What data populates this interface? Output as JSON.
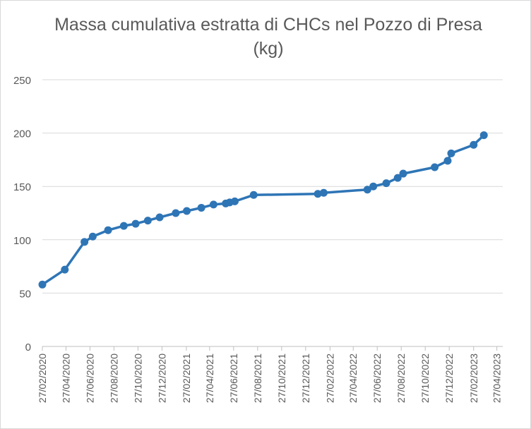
{
  "chart_data": {
    "type": "line",
    "title": "Massa cumulativa estratta di CHCs nel Pozzo di Presa (kg)",
    "xlabel": "",
    "ylabel": "",
    "ylim": [
      0,
      250
    ],
    "yticks": [
      0,
      50,
      100,
      150,
      200,
      250
    ],
    "x_tick_labels": [
      "27/02/2020",
      "27/04/2020",
      "27/06/2020",
      "27/08/2020",
      "27/10/2020",
      "27/12/2020",
      "27/02/2021",
      "27/04/2021",
      "27/06/2021",
      "27/08/2021",
      "27/10/2021",
      "27/12/2021",
      "27/02/2022",
      "27/04/2022",
      "27/06/2022",
      "27/08/2022",
      "27/10/2022",
      "27/12/2022",
      "27/02/2023",
      "27/04/2023"
    ],
    "grid": "horizontal",
    "legend": "none",
    "series_color": "#2e75b6",
    "series": [
      {
        "x": [
          "2020-02-27",
          "2020-04-24",
          "2020-06-13",
          "2020-07-04",
          "2020-08-12",
          "2020-09-21",
          "2020-10-21",
          "2020-11-21",
          "2020-12-21",
          "2021-01-31",
          "2021-02-28",
          "2021-04-06",
          "2021-05-07",
          "2021-06-07",
          "2021-06-17",
          "2021-06-30",
          "2021-08-17",
          "2022-01-27",
          "2022-02-11",
          "2022-06-02",
          "2022-06-17",
          "2022-07-20",
          "2022-08-18",
          "2022-09-01",
          "2022-11-20",
          "2022-12-23",
          "2023-01-01",
          "2023-02-27",
          "2023-03-25"
        ],
        "values": [
          58,
          72,
          98,
          103,
          109,
          113,
          115,
          118,
          121,
          125,
          127,
          130,
          133,
          134,
          135,
          136,
          142,
          143,
          144,
          147,
          150,
          153,
          158,
          162,
          168,
          174,
          181,
          189,
          198
        ]
      }
    ]
  }
}
